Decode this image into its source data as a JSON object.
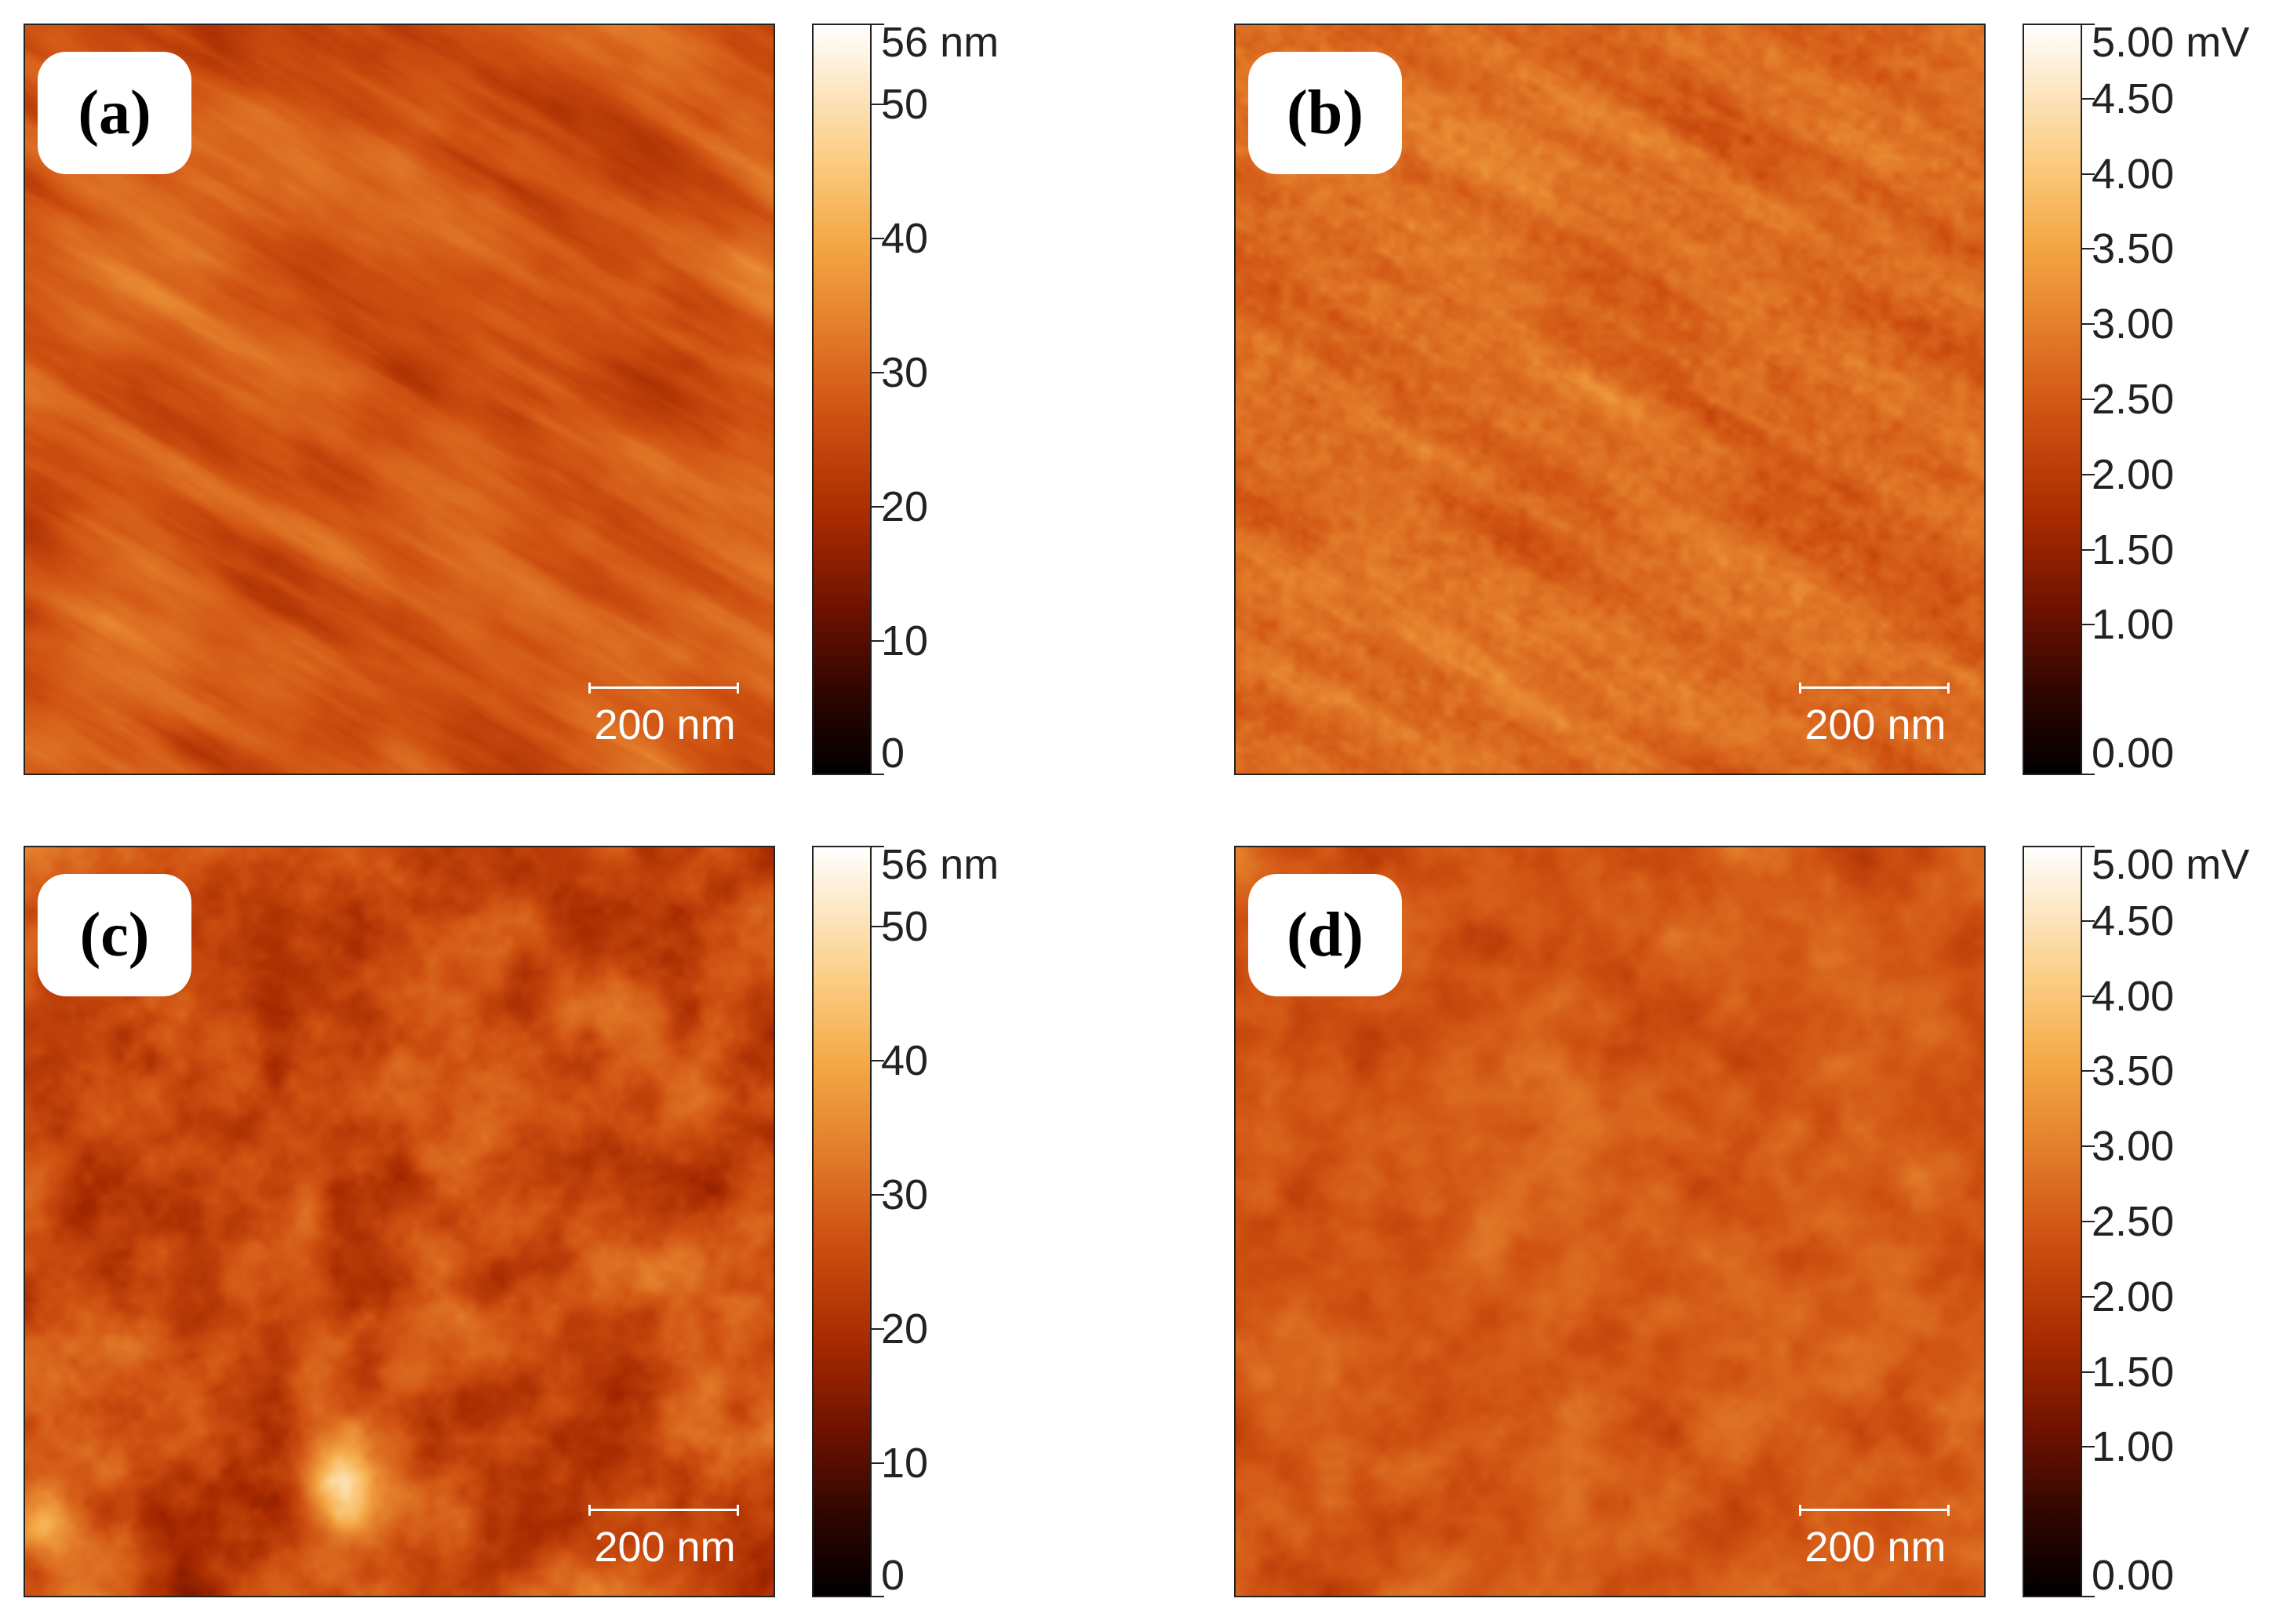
{
  "panels": [
    {
      "label": "(a)",
      "scale_bar": "200 nm",
      "colorbar": "nm"
    },
    {
      "label": "(b)",
      "scale_bar": "200 nm",
      "colorbar": "mv"
    },
    {
      "label": "(c)",
      "scale_bar": "200 nm",
      "colorbar": "nm"
    },
    {
      "label": "(d)",
      "scale_bar": "200 nm",
      "colorbar": "mv"
    }
  ],
  "colorbars": {
    "nm": {
      "ticks": [
        {
          "label": "56 nm",
          "value": 56
        },
        {
          "label": "50",
          "value": 50
        },
        {
          "label": "40",
          "value": 40
        },
        {
          "label": "30",
          "value": 30
        },
        {
          "label": "20",
          "value": 20
        },
        {
          "label": "10",
          "value": 10
        },
        {
          "label": "0",
          "value": 0
        }
      ],
      "range": [
        0,
        56
      ]
    },
    "mv": {
      "ticks": [
        {
          "label": "5.00 mV",
          "value": 5.0
        },
        {
          "label": "4.50",
          "value": 4.5
        },
        {
          "label": "4.00",
          "value": 4.0
        },
        {
          "label": "3.50",
          "value": 3.5
        },
        {
          "label": "3.00",
          "value": 3.0
        },
        {
          "label": "2.50",
          "value": 2.5
        },
        {
          "label": "2.00",
          "value": 2.0
        },
        {
          "label": "1.50",
          "value": 1.5
        },
        {
          "label": "1.00",
          "value": 1.0
        },
        {
          "label": "0.00",
          "value": 0.0
        }
      ],
      "range": [
        0,
        5
      ]
    }
  },
  "colors": {
    "colormap": [
      "#000000",
      "#6e1200",
      "#a82a00",
      "#cf5212",
      "#e47f2c",
      "#f4a845",
      "#fbcc82",
      "#ffffff"
    ]
  }
}
